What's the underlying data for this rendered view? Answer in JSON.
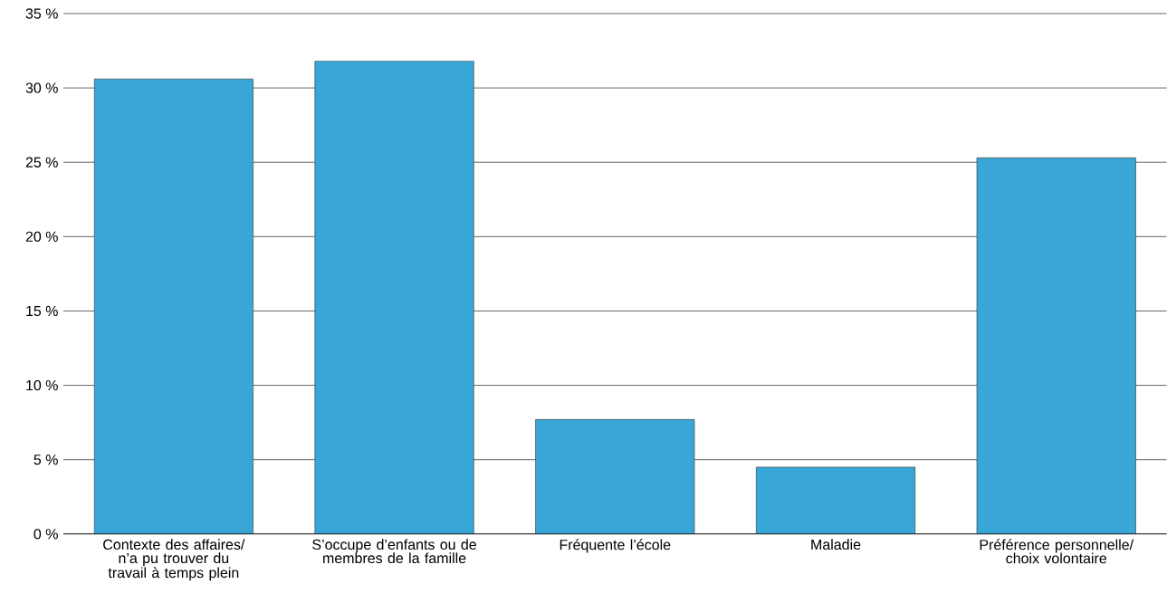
{
  "chart_data": {
    "type": "bar",
    "categories": [
      "Contexte des affaires/ n’a pu trouver du travail à temps plein",
      "S’occupe d’enfants ou de membres de la famille",
      "Fréquente l’école",
      "Maladie",
      "Préférence personnelle/ choix volontaire"
    ],
    "values": [
      30.6,
      31.8,
      7.7,
      4.5,
      25.3
    ],
    "color": "#38a6d6",
    "ylim": [
      0,
      35
    ],
    "yticks": [
      {
        "value": 0,
        "label": "0 %"
      },
      {
        "value": 5,
        "label": "5 %"
      },
      {
        "value": 10,
        "label": "10 %"
      },
      {
        "value": 15,
        "label": "15 %"
      },
      {
        "value": 20,
        "label": "20 %"
      },
      {
        "value": 25,
        "label": "25 %"
      },
      {
        "value": 30,
        "label": "30 %"
      },
      {
        "value": 35,
        "label": "35 %"
      }
    ],
    "grid": "y"
  }
}
